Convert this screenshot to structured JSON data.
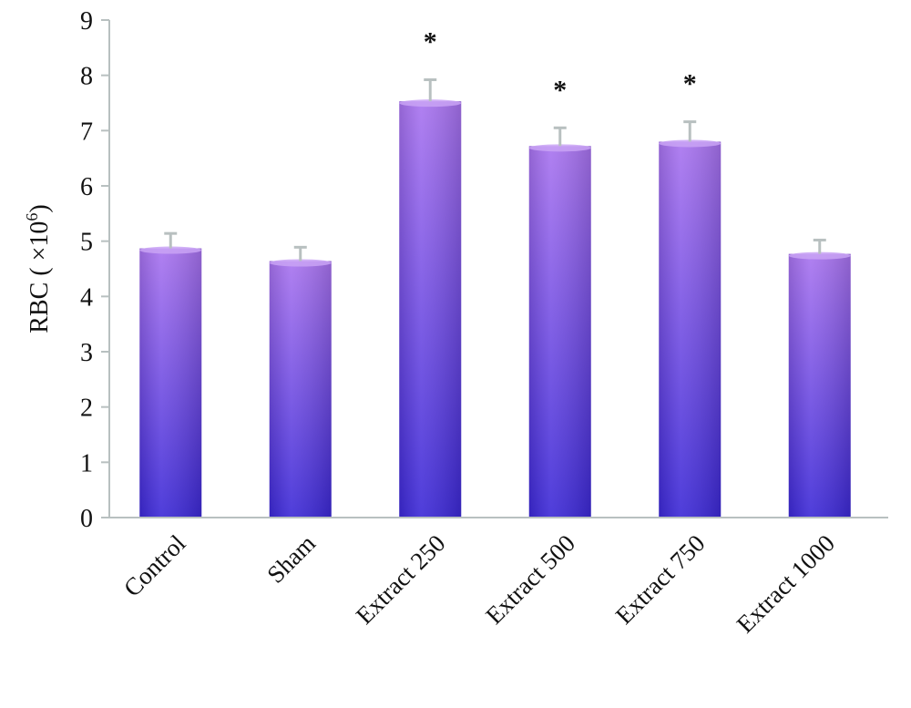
{
  "chart_data": {
    "type": "bar",
    "title": "",
    "xlabel": "",
    "ylabel": "RBC ( ×10",
    "ylabel_superscript": "6",
    "ylabel_suffix": ")",
    "ylim": [
      0,
      9
    ],
    "yticks": [
      "0",
      "1",
      "2",
      "3",
      "4",
      "5",
      "6",
      "7",
      "8",
      "9"
    ],
    "grid": false,
    "legend": "none",
    "categories": [
      "Control",
      "Sham",
      "Extract 250",
      "Extract 500",
      "Extract 750",
      "Extract 1000"
    ],
    "values": [
      4.87,
      4.64,
      7.53,
      6.72,
      6.8,
      4.77
    ],
    "errors": [
      0.27,
      0.25,
      0.39,
      0.33,
      0.36,
      0.25
    ],
    "significance": [
      "",
      "",
      "*",
      "*",
      "*",
      ""
    ],
    "bar_color_top": "#a873ef",
    "bar_color_bottom": "#3b28d6",
    "axis_color": "#b8c0c0"
  }
}
